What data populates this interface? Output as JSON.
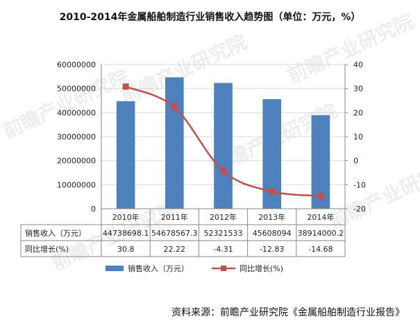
{
  "title": "2010-2014年金属船舶制造行业销售收入趋势图（单位：万元，%）",
  "source": "资料来源：前瞻产业研究院《金属船舶制造行业报告》",
  "watermark": "前瞻产业研究院",
  "colors": {
    "bar": "#4f81bd",
    "line": "#c0504d",
    "grid": "#d9d9d9",
    "axis": "#868686"
  },
  "chart_data": {
    "type": "bar",
    "categories": [
      "2010年",
      "2011年",
      "2012年",
      "2013年",
      "2014年"
    ],
    "series": [
      {
        "name": "销售收入（万元）",
        "type": "bar",
        "axis": "left",
        "values": [
          44738698.1,
          54678567.3,
          52321533,
          45608094,
          38914000.2
        ],
        "labels": [
          "44738698.1",
          "54678567.3",
          "52321533",
          "45608094",
          "38914000.2"
        ],
        "color": "#4f81bd"
      },
      {
        "name": "同比增长(%)",
        "type": "line",
        "axis": "right",
        "values": [
          30.8,
          22.22,
          -4.31,
          -12.83,
          -14.68
        ],
        "labels": [
          "30.8",
          "22.22",
          "-4.31",
          "-12.83",
          "-14.68"
        ],
        "color": "#c0504d"
      }
    ],
    "ylim": [
      0,
      60000000
    ],
    "yticks": [
      "0",
      "10000000",
      "20000000",
      "30000000",
      "40000000",
      "50000000",
      "60000000"
    ],
    "y2lim": [
      -20,
      40
    ],
    "y2ticks": [
      "-20",
      "-10",
      "0",
      "10",
      "20",
      "30",
      "40"
    ],
    "grid": true,
    "data_table": true,
    "legend": "bottom"
  }
}
